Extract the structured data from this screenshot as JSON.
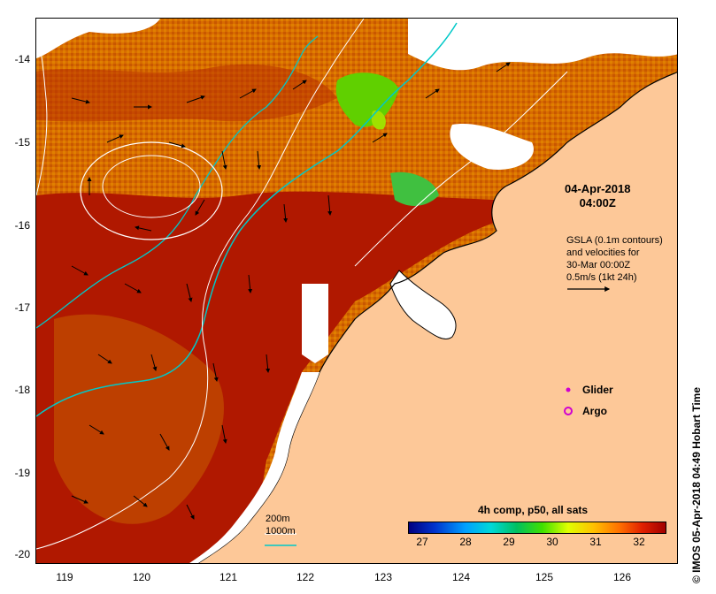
{
  "map": {
    "y_ticks": [
      "-14",
      "-15",
      "-16",
      "-17",
      "-18",
      "-19",
      "-20"
    ],
    "x_ticks": [
      "119",
      "120",
      "121",
      "122",
      "123",
      "124",
      "125",
      "126"
    ]
  },
  "annotations": {
    "date_line1": "04-Apr-2018",
    "date_line2": "04:00Z",
    "gsla_line1": "GSLA (0.1m contours)",
    "gsla_line2": "and velocities for",
    "gsla_line3": "30-Mar 00:00Z",
    "gsla_line4": "0.5m/s (1kt 24h)"
  },
  "legend": {
    "glider": "Glider",
    "argo": "Argo",
    "depth_200": "200m",
    "depth_1000": "1000m"
  },
  "colorbar": {
    "title": "4h comp, p50, all sats",
    "ticks": [
      "27",
      "28",
      "29",
      "30",
      "31",
      "32"
    ]
  },
  "credit": "© IMOS 05-Apr-2018 04:49 Hobart Time",
  "colors": {
    "land": "#fdc898",
    "sst_hot": "#b01800",
    "sst_warm": "#e07000",
    "contour_200": "#00c8c8",
    "glider_marker": "#d000d0"
  }
}
